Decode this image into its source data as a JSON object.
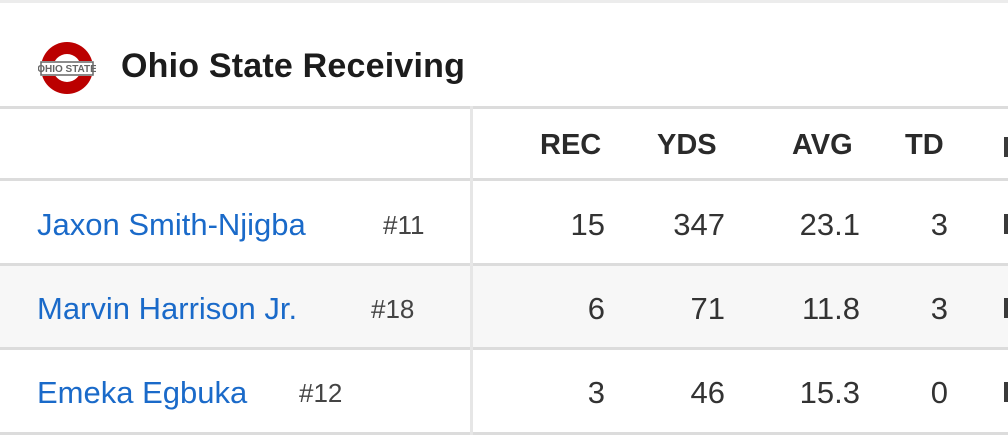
{
  "team": {
    "title": "Ohio State Receiving",
    "logo_text": "OHIO STATE",
    "logo_colors": {
      "red": "#bb0000",
      "gray": "#666666"
    }
  },
  "columns": [
    "REC",
    "YDS",
    "AVG",
    "TD"
  ],
  "players": [
    {
      "name": "Jaxon Smith-Njigba",
      "number": "#11",
      "rec": "15",
      "yds": "347",
      "avg": "23.1",
      "td": "3"
    },
    {
      "name": "Marvin Harrison Jr.",
      "number": "#18",
      "rec": "6",
      "yds": "71",
      "avg": "11.8",
      "td": "3"
    },
    {
      "name": "Emeka Egbuka",
      "number": "#12",
      "rec": "3",
      "yds": "46",
      "avg": "15.3",
      "td": "0"
    }
  ],
  "colors": {
    "link": "#1a6ac9",
    "alt_row": "#f7f7f7"
  }
}
